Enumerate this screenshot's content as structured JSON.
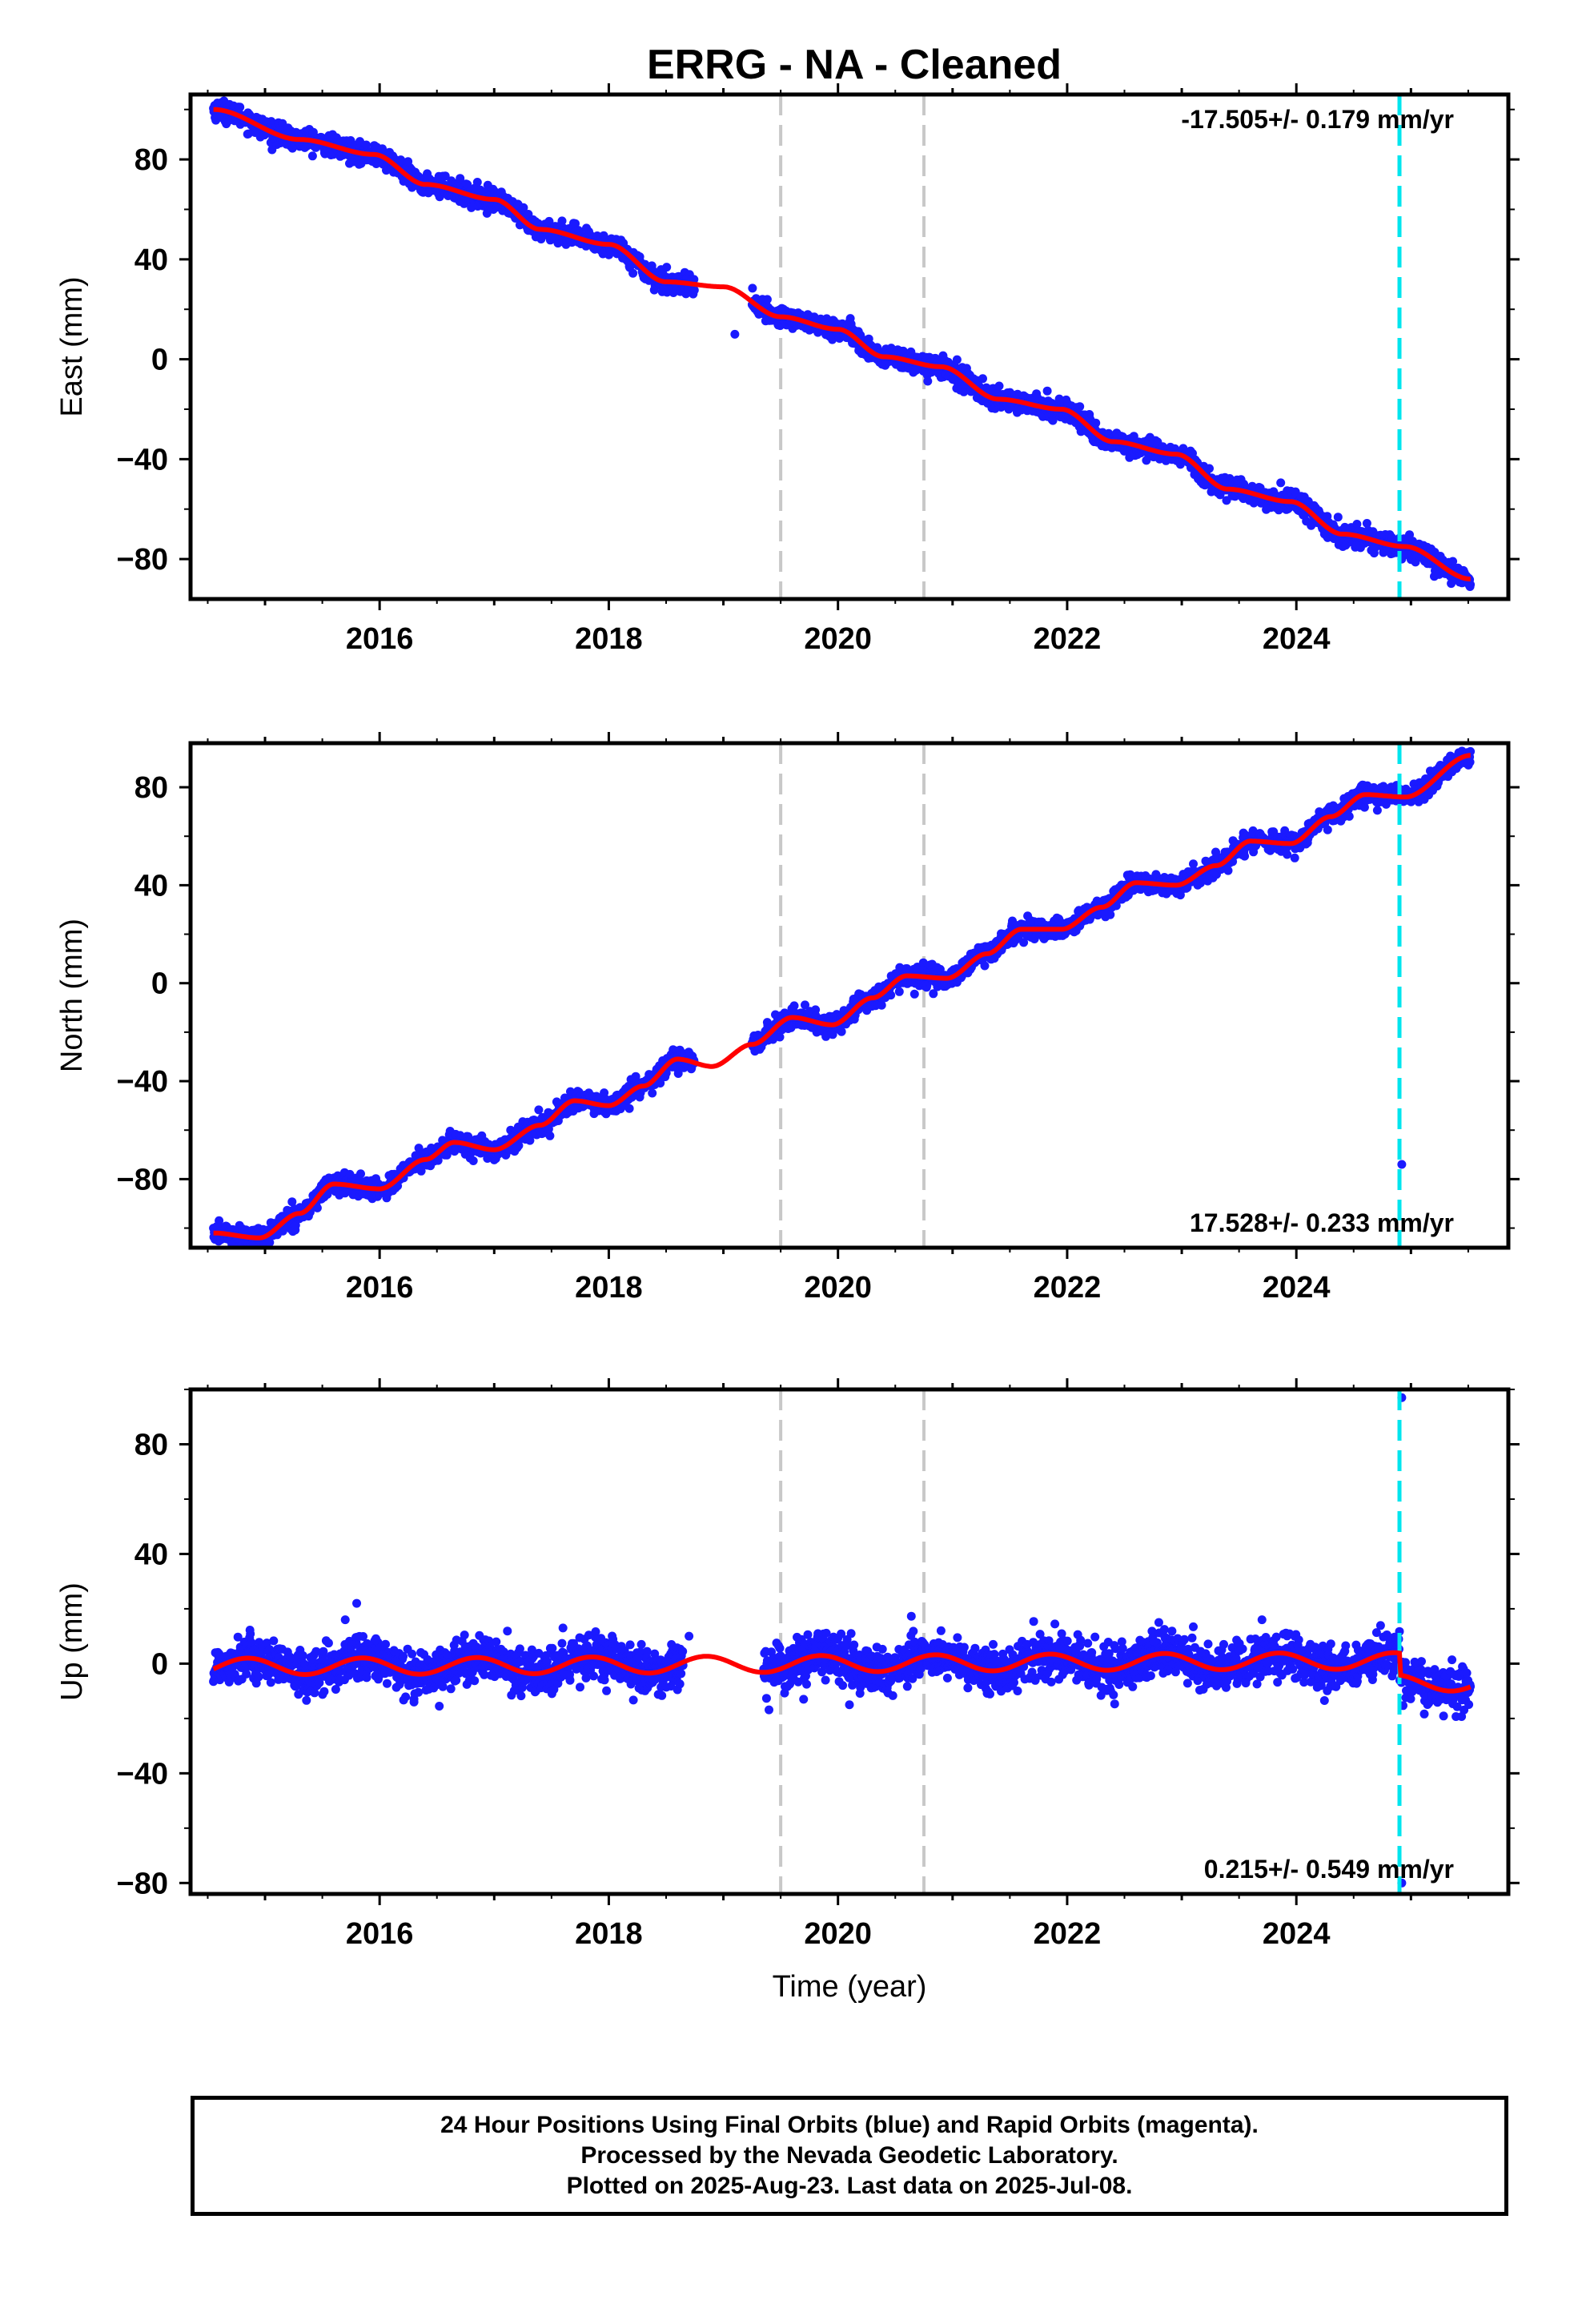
{
  "title": "ERRG  - NA - Cleaned",
  "colors": {
    "points": "#1a1aff",
    "fit": "#ff0000",
    "gray_line": "#c8c8c8",
    "cyan_line": "#00e5ee",
    "axis": "#000000"
  },
  "chart_data": [
    {
      "type": "scatter",
      "name": "east",
      "ylabel": "East (mm)",
      "xlabel": "",
      "annotation": "-17.505+/- 0.179 mm/yr",
      "annotation_position": "top-right",
      "xlim": [
        2014.35,
        2025.85
      ],
      "ylim": [
        -96,
        106
      ],
      "xticks": [
        2016,
        2018,
        2020,
        2022,
        2024
      ],
      "yticks": [
        -80,
        -40,
        0,
        40,
        80
      ],
      "vlines_gray": [
        2019.5,
        2020.75
      ],
      "vline_cyan": 2024.9,
      "data_start": 2014.55,
      "data_end": 2025.52,
      "gap": [
        2018.75,
        2019.25
      ],
      "trend_knots": [
        [
          2014.55,
          100
        ],
        [
          2015.3,
          88
        ],
        [
          2015.95,
          82
        ],
        [
          2016.4,
          70
        ],
        [
          2017.0,
          64
        ],
        [
          2017.4,
          52
        ],
        [
          2018.0,
          46
        ],
        [
          2018.5,
          31
        ],
        [
          2019.0,
          29
        ],
        [
          2019.5,
          17
        ],
        [
          2020.0,
          12
        ],
        [
          2020.4,
          1
        ],
        [
          2020.9,
          -3
        ],
        [
          2021.4,
          -16
        ],
        [
          2021.95,
          -20
        ],
        [
          2022.4,
          -33
        ],
        [
          2022.95,
          -38
        ],
        [
          2023.4,
          -52
        ],
        [
          2023.95,
          -57
        ],
        [
          2024.4,
          -70
        ],
        [
          2024.95,
          -75
        ],
        [
          2025.52,
          -88
        ]
      ],
      "scatter_sd": 2.0,
      "outliers": [
        [
          2019.1,
          10
        ],
        [
          2018.68,
          32
        ],
        [
          2024.92,
          -80
        ],
        [
          2025.45,
          -86
        ]
      ]
    },
    {
      "type": "scatter",
      "name": "north",
      "ylabel": "North (mm)",
      "xlabel": "",
      "annotation": "17.528+/- 0.233 mm/yr",
      "annotation_position": "bottom-right",
      "xlim": [
        2014.35,
        2025.85
      ],
      "ylim": [
        -108,
        98
      ],
      "xticks": [
        2016,
        2018,
        2020,
        2022,
        2024
      ],
      "yticks": [
        -80,
        -40,
        0,
        40,
        80
      ],
      "vlines_gray": [
        2019.5,
        2020.75
      ],
      "vline_cyan": 2024.9,
      "data_start": 2014.55,
      "data_end": 2025.52,
      "gap": [
        2018.75,
        2019.25
      ],
      "trend_knots": [
        [
          2014.55,
          -102
        ],
        [
          2014.95,
          -104
        ],
        [
          2015.3,
          -94
        ],
        [
          2015.6,
          -82
        ],
        [
          2016.0,
          -84
        ],
        [
          2016.4,
          -72
        ],
        [
          2016.65,
          -65
        ],
        [
          2017.0,
          -68
        ],
        [
          2017.4,
          -58
        ],
        [
          2017.7,
          -48
        ],
        [
          2018.0,
          -50
        ],
        [
          2018.3,
          -42
        ],
        [
          2018.6,
          -31
        ],
        [
          2018.9,
          -34
        ],
        [
          2019.25,
          -25
        ],
        [
          2019.6,
          -14
        ],
        [
          2019.95,
          -17
        ],
        [
          2020.3,
          -6
        ],
        [
          2020.6,
          3
        ],
        [
          2020.95,
          2
        ],
        [
          2021.3,
          12
        ],
        [
          2021.6,
          22
        ],
        [
          2021.95,
          22
        ],
        [
          2022.3,
          31
        ],
        [
          2022.6,
          41
        ],
        [
          2022.95,
          40
        ],
        [
          2023.3,
          48
        ],
        [
          2023.6,
          58
        ],
        [
          2023.95,
          57
        ],
        [
          2024.3,
          68
        ],
        [
          2024.6,
          77
        ],
        [
          2024.95,
          76
        ],
        [
          2025.52,
          93
        ]
      ],
      "scatter_sd": 2.0,
      "outliers": [
        [
          2018.72,
          -35
        ],
        [
          2019.55,
          -13
        ],
        [
          2024.92,
          -74
        ],
        [
          2025.48,
          92
        ]
      ]
    },
    {
      "type": "scatter",
      "name": "up",
      "ylabel": "Up (mm)",
      "xlabel": "Time (year)",
      "annotation": "0.215+/- 0.549 mm/yr",
      "annotation_position": "bottom-right",
      "xlim": [
        2014.35,
        2025.85
      ],
      "ylim": [
        -84,
        100
      ],
      "xticks": [
        2016,
        2018,
        2020,
        2022,
        2024
      ],
      "yticks": [
        -80,
        -40,
        0,
        40,
        80
      ],
      "vlines_gray": [
        2019.5,
        2020.75
      ],
      "vline_cyan": 2024.9,
      "data_start": 2014.55,
      "data_end": 2025.52,
      "gap": [
        2018.65,
        2019.35
      ],
      "trend_knots": [
        [
          2014.55,
          -1
        ],
        [
          2025.52,
          1
        ]
      ],
      "seasonal_amp": 3,
      "seasonal_phase": 0.6,
      "offset_after": [
        2024.9,
        -8
      ],
      "scatter_sd": 4.0,
      "outliers": [
        [
          2015.8,
          22
        ],
        [
          2015.7,
          16
        ],
        [
          2016.3,
          -14
        ],
        [
          2018.7,
          10
        ],
        [
          2019.7,
          -13
        ],
        [
          2020.1,
          -15
        ],
        [
          2024.92,
          97
        ],
        [
          2024.92,
          -80
        ],
        [
          2017.6,
          13
        ],
        [
          2022.8,
          15
        ],
        [
          2023.7,
          16
        ]
      ]
    }
  ],
  "footer": {
    "line1": "24 Hour Positions Using Final Orbits (blue) and Rapid Orbits (magenta).",
    "line2": "Processed by the Nevada Geodetic Laboratory.",
    "line3": "Plotted on 2025-Aug-23. Last data on 2025-Jul-08."
  }
}
